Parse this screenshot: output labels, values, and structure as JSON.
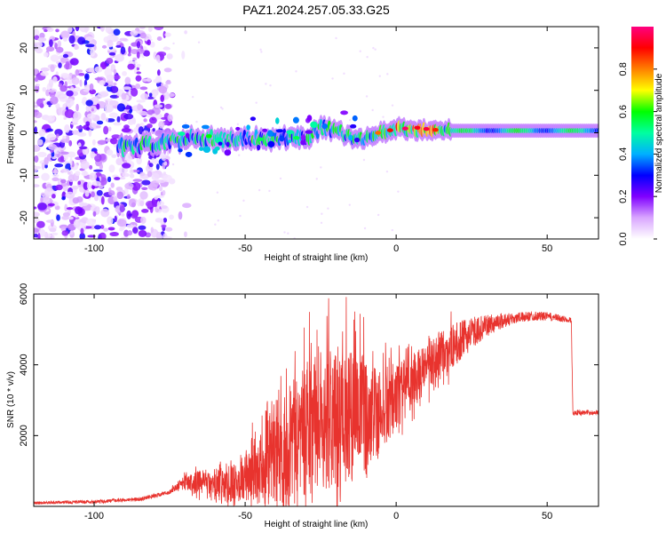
{
  "title": "PAZ1.2024.257.05.33.G25",
  "colors": {
    "snr_line": "#e8332e",
    "frame": "#000000",
    "colorbar_stops": [
      "#ffffff",
      "#d9a6ff",
      "#8000ff",
      "#0000ff",
      "#00b0ff",
      "#00ffa0",
      "#00ff00",
      "#ffff00",
      "#ff8000",
      "#ff0000",
      "#ff0080"
    ]
  },
  "chart_data": [
    {
      "type": "heatmap",
      "name": "spectrogram",
      "xlabel": "Height of straight line (km)",
      "ylabel": "Frequency (Hz)",
      "xlim": [
        -120,
        67
      ],
      "ylim": [
        -25,
        25
      ],
      "xticks": [
        -100,
        -50,
        0,
        50
      ],
      "yticks": [
        -20,
        -10,
        0,
        10,
        20
      ],
      "colorbar": {
        "label": "Normalized spectral amplitude",
        "range": [
          0,
          1
        ],
        "ticks": [
          "0.0",
          "0.2",
          "0.4",
          "0.6",
          "0.8"
        ],
        "tick_values": [
          0,
          0.2,
          0.4,
          0.6,
          0.8
        ]
      },
      "features": {
        "noise_region_x": [
          -120,
          -75
        ],
        "signal_band_center": [
          [
            -90,
            -3.5
          ],
          [
            -80,
            -2.5
          ],
          [
            -70,
            -1.5
          ],
          [
            -60,
            -1.5
          ],
          [
            -50,
            -1.5
          ],
          [
            -40,
            -1.5
          ],
          [
            -30,
            -1
          ],
          [
            -25,
            1
          ],
          [
            -20,
            1
          ],
          [
            -15,
            -1
          ],
          [
            -10,
            -1
          ],
          [
            -5,
            0
          ],
          [
            0,
            1
          ],
          [
            10,
            0.5
          ],
          [
            20,
            0.5
          ],
          [
            30,
            0.5
          ],
          [
            40,
            0.5
          ],
          [
            50,
            0.5
          ],
          [
            67,
            0.5
          ]
        ]
      }
    },
    {
      "type": "line",
      "name": "snr",
      "xlabel": "Height of straight line (km)",
      "ylabel": "SNR (10 * v/v)",
      "xlim": [
        -120,
        67
      ],
      "ylim": [
        0,
        6000
      ],
      "xticks": [
        -100,
        -50,
        0,
        50
      ],
      "yticks": [
        2000,
        4000,
        6000
      ],
      "series": [
        {
          "trend_x": [
            -120,
            -100,
            -85,
            -75,
            -70,
            -65,
            -60,
            -55,
            -50,
            -45,
            -40,
            -35,
            -30,
            -25,
            -20,
            -15,
            -10,
            -5,
            0,
            5,
            10,
            15,
            20,
            25,
            30,
            35,
            40,
            45,
            50,
            55,
            58,
            58.5,
            67
          ],
          "trend_y": [
            100,
            130,
            200,
            400,
            700,
            650,
            600,
            700,
            850,
            1100,
            1500,
            1900,
            2200,
            2400,
            2500,
            2550,
            2550,
            2700,
            3100,
            3500,
            3900,
            4300,
            4600,
            4900,
            5100,
            5250,
            5330,
            5380,
            5370,
            5300,
            5260,
            2650,
            2650
          ],
          "noise_amplitude_x": [
            -120,
            -75,
            -60,
            -50,
            -40,
            -30,
            -20,
            -10,
            0,
            10,
            20,
            30,
            40,
            50,
            58,
            67
          ],
          "noise_amplitude_y": [
            40,
            60,
            500,
            700,
            1500,
            2000,
            2000,
            1800,
            900,
            700,
            600,
            300,
            150,
            120,
            80,
            60
          ]
        }
      ]
    }
  ]
}
